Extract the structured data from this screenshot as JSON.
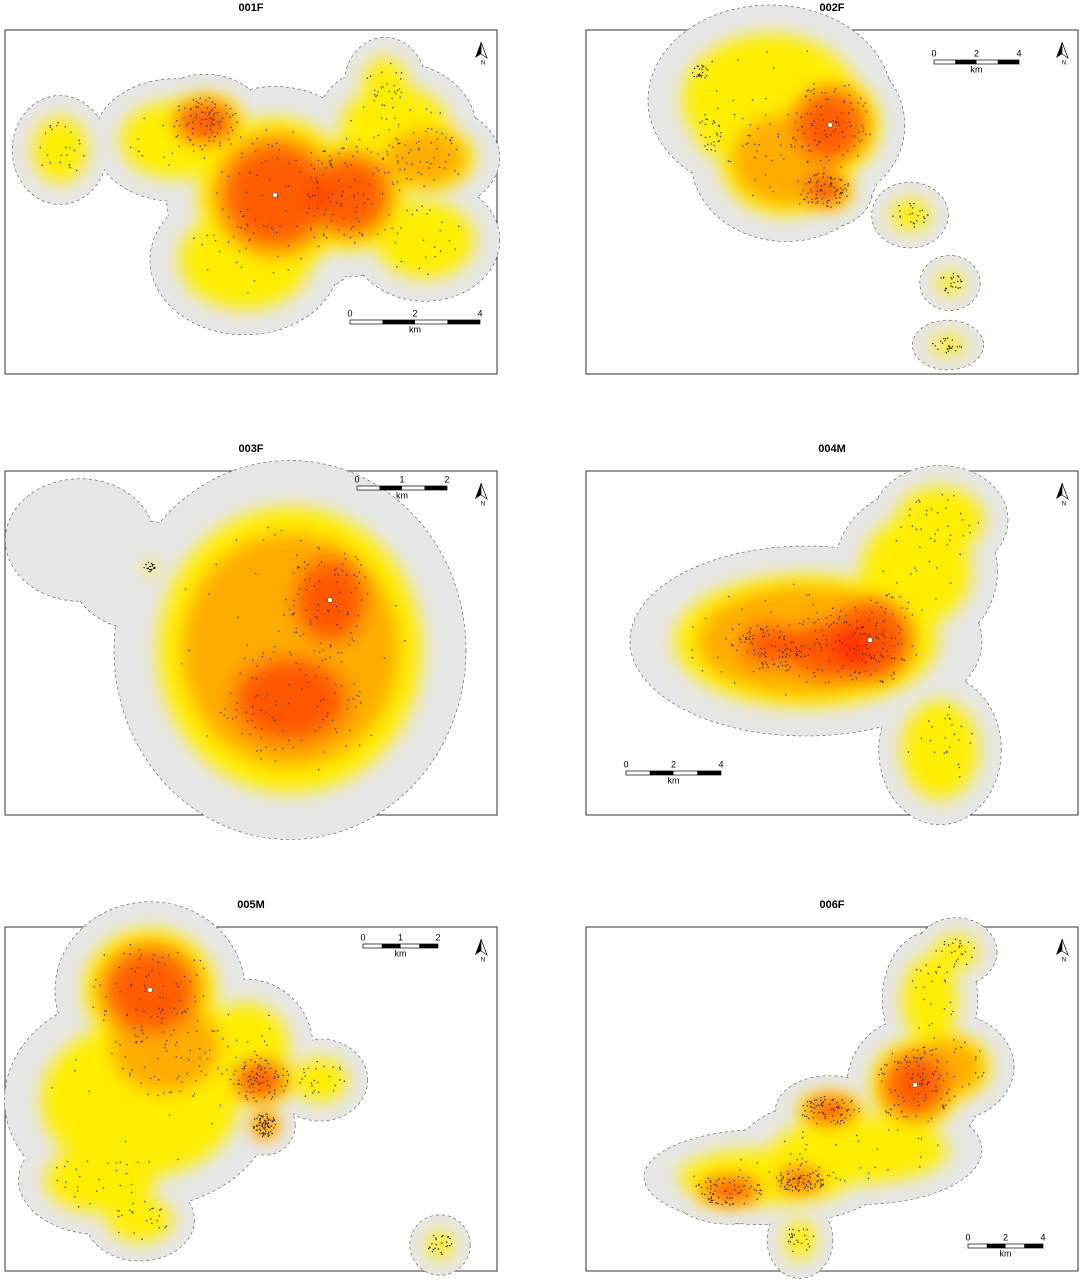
{
  "panels": [
    {
      "title": "001F",
      "scale": {
        "ticks": [
          "0",
          "2",
          "4"
        ],
        "unit": "km"
      },
      "north": "N"
    },
    {
      "title": "002F",
      "scale": {
        "ticks": [
          "0",
          "2",
          "4"
        ],
        "unit": "km"
      },
      "north": "N"
    },
    {
      "title": "003F",
      "scale": {
        "ticks": [
          "0",
          "1",
          "2"
        ],
        "unit": "km"
      },
      "north": "N"
    },
    {
      "title": "004M",
      "scale": {
        "ticks": [
          "0",
          "2",
          "4"
        ],
        "unit": "km"
      },
      "north": "N"
    },
    {
      "title": "005M",
      "scale": {
        "ticks": [
          "0",
          "1",
          "2"
        ],
        "unit": "km"
      },
      "north": "N"
    },
    {
      "title": "006F",
      "scale": {
        "ticks": [
          "0",
          "2",
          "4"
        ],
        "unit": "km"
      },
      "north": "N"
    }
  ]
}
